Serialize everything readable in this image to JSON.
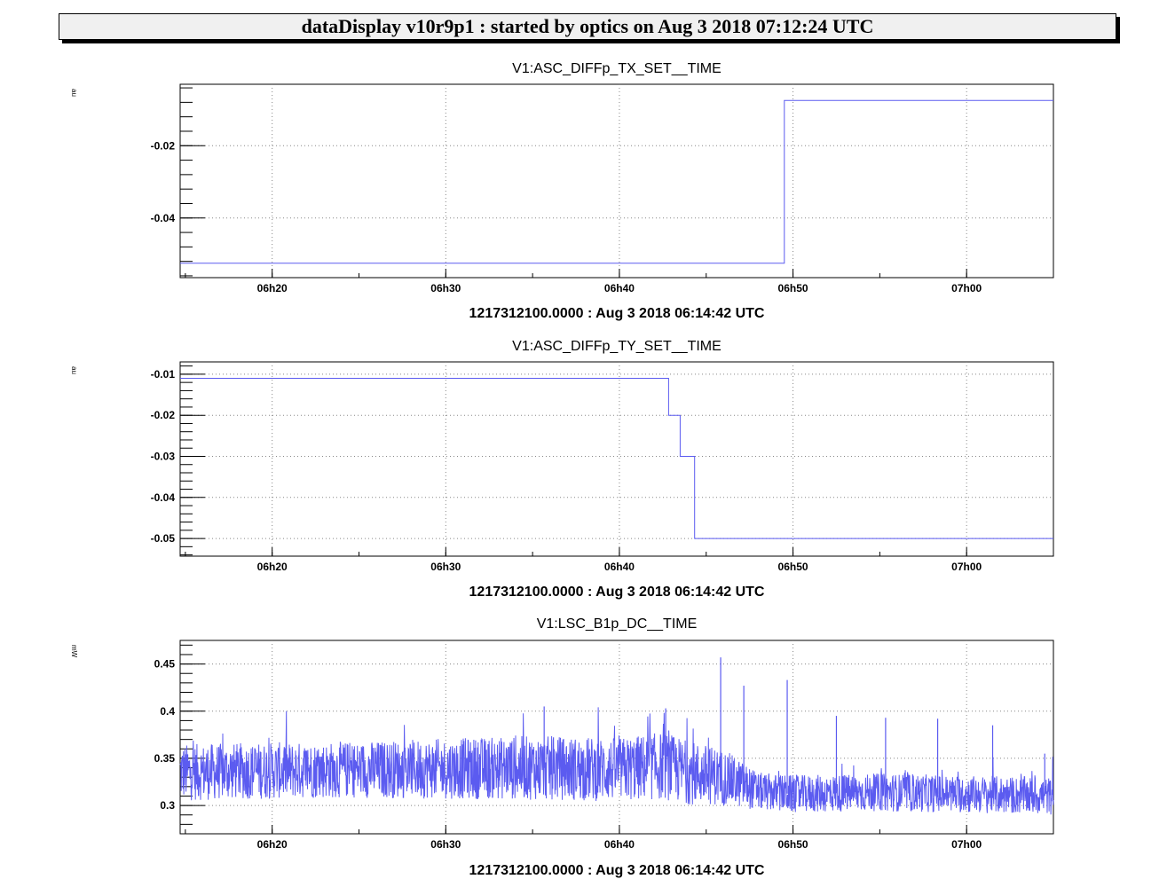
{
  "window": {
    "title": "dataDisplay v10r9p1 : started by optics on Aug  3 2018 07:12:24 UTC"
  },
  "colors": {
    "series": "#5b5bf0",
    "grid": "#888888",
    "frame": "#000000"
  },
  "chart_data": [
    {
      "type": "line",
      "title": "V1:ASC_DIFFp_TX_SET__TIME",
      "ylabel": "au",
      "xlabel": "1217312100.0000 : Aug  3 2018 06:14:42 UTC",
      "x_ticks": [
        "06h20",
        "06h30",
        "06h40",
        "06h50",
        "07h00"
      ],
      "y_ticks": [
        -0.02,
        -0.04
      ],
      "xlim": [
        "06h14m42s",
        "07h05m00s"
      ],
      "ylim": [
        -0.0565,
        -0.003
      ],
      "grid": true,
      "series": [
        {
          "x": [
            "06h14m42s",
            "06h49m30s",
            "06h49m30s",
            "07h05m00s"
          ],
          "values": [
            -0.0525,
            -0.0525,
            -0.0075,
            -0.0075
          ]
        }
      ]
    },
    {
      "type": "line",
      "title": "V1:ASC_DIFFp_TY_SET__TIME",
      "ylabel": "au",
      "xlabel": "1217312100.0000 : Aug  3 2018 06:14:42 UTC",
      "x_ticks": [
        "06h20",
        "06h30",
        "06h40",
        "06h50",
        "07h00"
      ],
      "y_ticks": [
        -0.01,
        -0.02,
        -0.03,
        -0.04,
        -0.05
      ],
      "xlim": [
        "06h14m42s",
        "07h05m00s"
      ],
      "ylim": [
        -0.0543,
        -0.007
      ],
      "grid": true,
      "series": [
        {
          "x": [
            "06h14m42s",
            "06h42m50s",
            "06h42m50s",
            "06h43m30s",
            "06h43m30s",
            "06h44m20s",
            "06h44m20s",
            "07h05m00s"
          ],
          "values": [
            -0.011,
            -0.011,
            -0.02,
            -0.02,
            -0.03,
            -0.03,
            -0.05,
            -0.05
          ]
        }
      ]
    },
    {
      "type": "line",
      "title": "V1:LSC_B1p_DC__TIME",
      "ylabel": "mW",
      "xlabel": "1217312100.0000 : Aug  3 2018 06:14:42 UTC",
      "x_ticks": [
        "06h20",
        "06h30",
        "06h40",
        "06h50",
        "07h00"
      ],
      "y_ticks": [
        0.45,
        0.4,
        0.35,
        0.3
      ],
      "xlim": [
        "06h14m42s",
        "07h05m00s"
      ],
      "ylim": [
        0.27,
        0.475
      ],
      "grid": true,
      "series": [
        {
          "x": [
            "06h14m42s",
            "06h20m00s",
            "06h25m00s",
            "06h30m00s",
            "06h35m00s",
            "06h40m00s",
            "06h42m30s",
            "06h44m00s",
            "06h46m00s",
            "06h48m00s",
            "06h50m00s",
            "06h55m00s",
            "07h00m00s",
            "07h05m00s"
          ],
          "values": [
            0.335,
            0.337,
            0.338,
            0.339,
            0.34,
            0.338,
            0.342,
            0.335,
            0.33,
            0.315,
            0.312,
            0.314,
            0.312,
            0.31
          ],
          "band": [
            0.03,
            0.03,
            0.03,
            0.032,
            0.034,
            0.034,
            0.036,
            0.034,
            0.03,
            0.02,
            0.02,
            0.02,
            0.02,
            0.02
          ],
          "spikes": [
            [
              "06h45m50s",
              0.457
            ],
            [
              "06h42m40s",
              0.403
            ],
            [
              "06h47m10s",
              0.427
            ],
            [
              "06h49m40s",
              0.433
            ],
            [
              "06h35m40s",
              0.405
            ],
            [
              "06h55m20s",
              0.393
            ],
            [
              "06h52m30s",
              0.395
            ],
            [
              "07h04m30s",
              0.355
            ],
            [
              "07h01m30s",
              0.385
            ],
            [
              "06h58m20s",
              0.392
            ]
          ]
        }
      ]
    }
  ]
}
